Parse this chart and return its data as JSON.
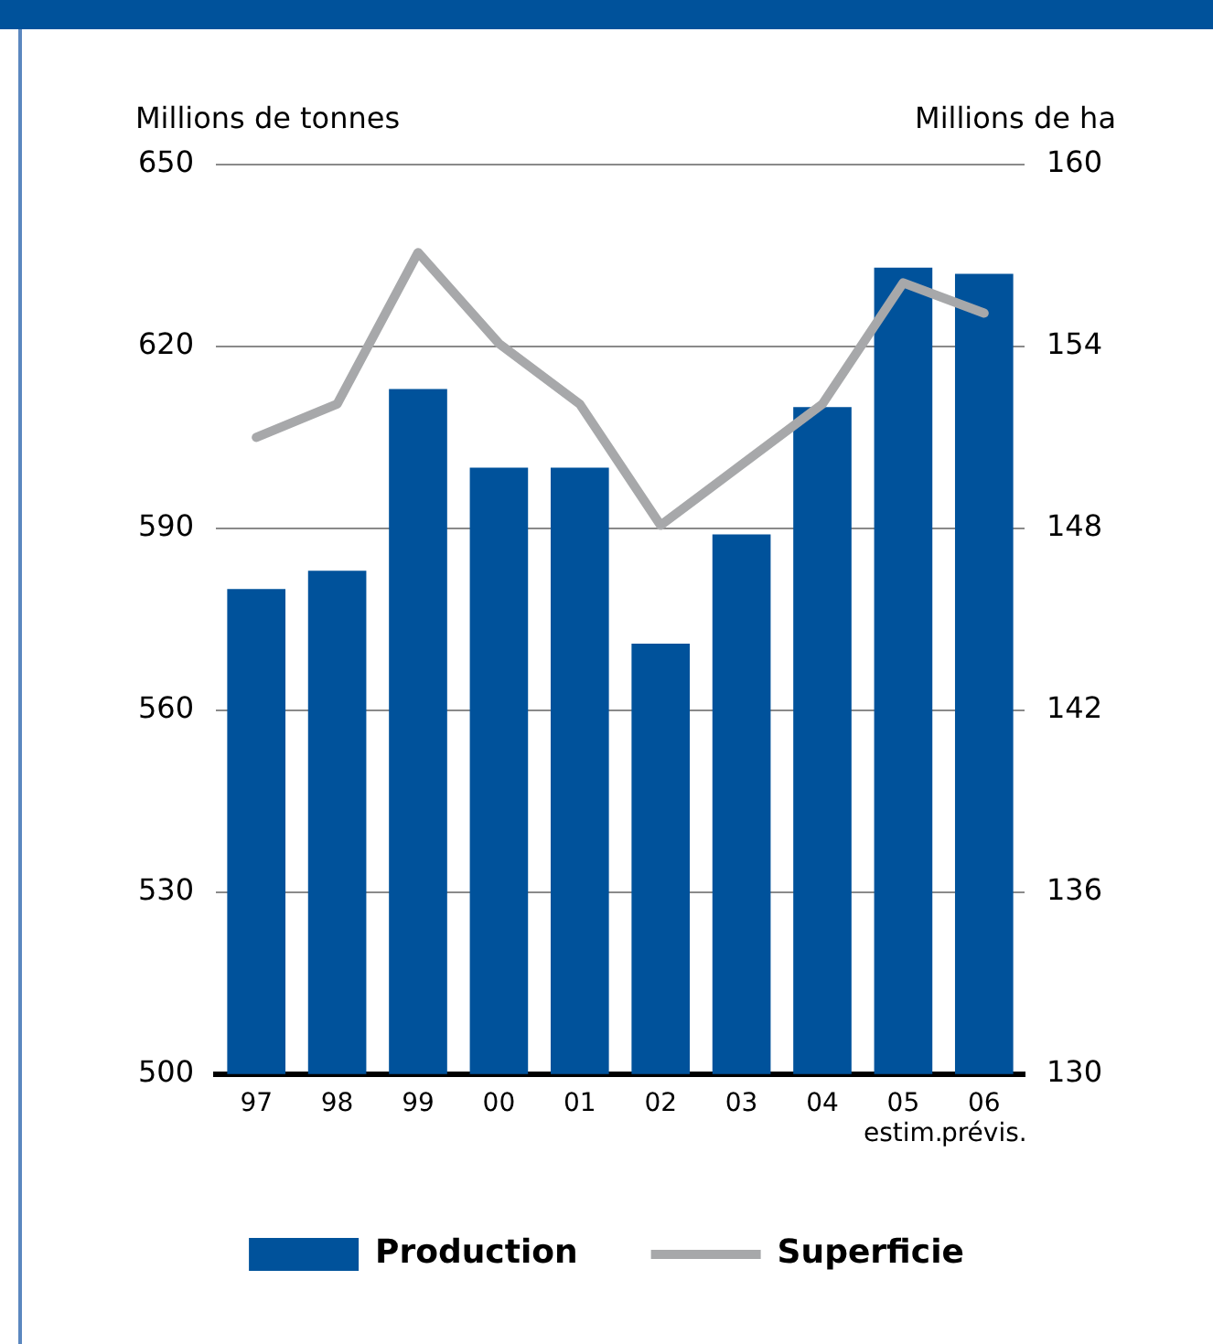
{
  "chart_data": {
    "type": "bar",
    "ylabel": "Millions de tonnes",
    "y2label": "Millions de ha",
    "categories": [
      "97",
      "98",
      "99",
      "00",
      "01",
      "02",
      "03",
      "04",
      "05\nestim.",
      "06\nprévis."
    ],
    "series": [
      {
        "name": "Production",
        "color": "#00529b",
        "values": [
          580,
          583,
          613,
          600,
          600,
          571,
          589,
          610,
          633,
          632
        ]
      },
      {
        "name": "Superficie",
        "type": "line",
        "axis": "y2",
        "color": "#a7a8aa",
        "values": [
          151,
          152.1,
          157.1,
          154.1,
          152.1,
          148.1,
          150.1,
          152.1,
          156.1,
          155.1
        ]
      }
    ],
    "ylim": [
      500,
      650
    ],
    "yticks": [
      500,
      530,
      560,
      590,
      620,
      650
    ],
    "y2lim": [
      130,
      160
    ],
    "y2ticks": [
      130,
      136,
      142,
      148,
      154,
      160
    ],
    "grid": "y",
    "legend": "bottom",
    "marker": "none"
  }
}
